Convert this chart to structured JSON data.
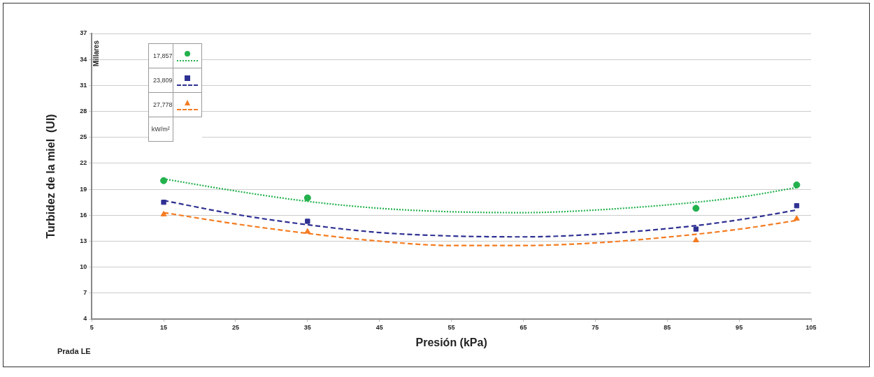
{
  "chart_data": {
    "type": "scatter",
    "xlabel": "Presión (kPa)",
    "ylabel": "Turbidez de la miel  (UI)",
    "legend_title": "kW/m²",
    "annotations": [
      "Millares",
      "Prada LE"
    ],
    "xlim": [
      5,
      105
    ],
    "xticks": [
      5,
      15,
      25,
      35,
      45,
      55,
      65,
      75,
      85,
      95,
      105
    ],
    "ylim": [
      4,
      37
    ],
    "yticks": [
      4,
      7,
      10,
      13,
      16,
      19,
      22,
      25,
      28,
      31,
      34,
      37
    ],
    "grid": "y",
    "legend": "top left",
    "series": [
      {
        "name": "17,857",
        "color": "#22b14c",
        "marker": "circle",
        "x": [
          15,
          35,
          89,
          103
        ],
        "values": [
          20.0,
          18.0,
          16.8,
          19.5
        ]
      },
      {
        "name": "23,809",
        "color": "#2e3192",
        "marker": "square",
        "x": [
          15,
          35,
          89,
          103
        ],
        "values": [
          17.5,
          15.3,
          14.4,
          17.1
        ]
      },
      {
        "name": "27,778",
        "color": "#f47b20",
        "marker": "triangle",
        "x": [
          15,
          35,
          89,
          103
        ],
        "values": [
          16.1,
          14.1,
          13.1,
          15.6
        ]
      },
      {
        "type": "line",
        "color": "#22b14c",
        "line_style": "dotted",
        "marker": "none",
        "x": [
          15,
          25,
          35,
          45,
          55,
          65,
          75,
          89,
          96,
          103
        ],
        "values": [
          20.2,
          18.8,
          17.6,
          16.8,
          16.4,
          16.3,
          16.6,
          17.5,
          18.2,
          19.2
        ]
      },
      {
        "type": "line",
        "color": "#2e3192",
        "line_style": "dashed",
        "marker": "none",
        "x": [
          15,
          25,
          35,
          45,
          55,
          65,
          75,
          89,
          96,
          103
        ],
        "values": [
          17.7,
          16.1,
          14.9,
          14.0,
          13.6,
          13.5,
          13.8,
          14.8,
          15.6,
          16.6
        ]
      },
      {
        "type": "line",
        "color": "#f47b20",
        "line_style": "dashed",
        "marker": "none",
        "x": [
          15,
          25,
          35,
          45,
          55,
          65,
          75,
          89,
          96,
          103
        ],
        "values": [
          16.3,
          15.0,
          13.9,
          13.0,
          12.5,
          12.5,
          12.8,
          13.8,
          14.5,
          15.4
        ]
      }
    ]
  }
}
